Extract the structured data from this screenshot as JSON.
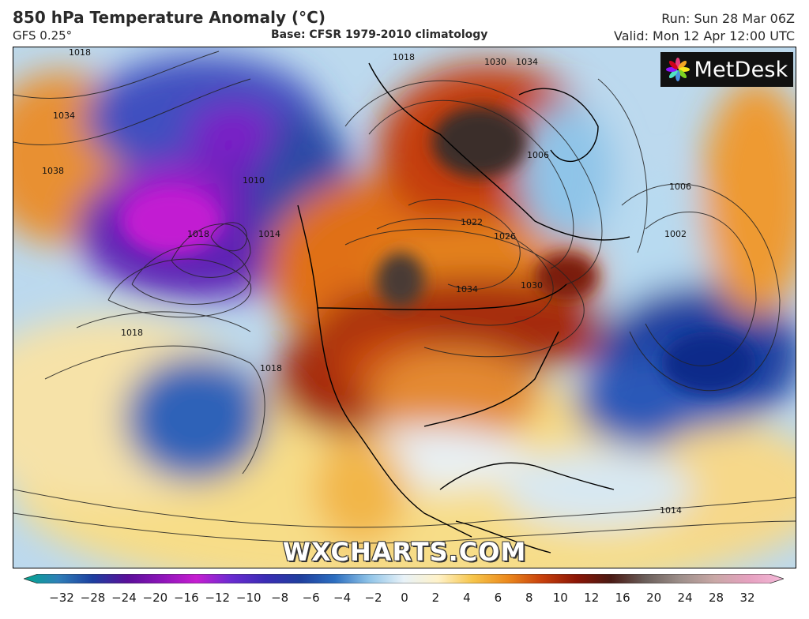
{
  "header": {
    "title": "850 hPa Temperature Anomaly (°C)",
    "model": "GFS 0.25°",
    "base": "Base: CFSR 1979-2010 climatology",
    "run": "Run: Sun 28 Mar 06Z",
    "valid": "Valid: Mon 12 Apr 12:00 UTC"
  },
  "logo": {
    "text": "MetDesk",
    "icon": "flower-icon"
  },
  "watermark": "WXCHARTS.COM",
  "map": {
    "isobar_labels": [
      "1018",
      "1034",
      "1038",
      "1010",
      "1014",
      "1018",
      "1018",
      "1018",
      "1014",
      "1022",
      "1026",
      "1034",
      "1030",
      "1006",
      "1006",
      "1002",
      "1030",
      "1034",
      "1018"
    ]
  },
  "colorbar": {
    "ticks": [
      "−32",
      "−28",
      "−24",
      "−20",
      "−16",
      "−12",
      "−10",
      "−8",
      "−6",
      "−4",
      "−2",
      "0",
      "2",
      "4",
      "6",
      "8",
      "10",
      "12",
      "16",
      "20",
      "24",
      "28",
      "32"
    ],
    "stops": [
      "#00a890",
      "#2f7fb8",
      "#1d3fa0",
      "#5a0f9a",
      "#8d14b9",
      "#c61ed1",
      "#6a2bd1",
      "#3a2cb5",
      "#1f3f9e",
      "#2c6ec0",
      "#8fc4e8",
      "#e8f2f8",
      "#fff2c8",
      "#f6c54a",
      "#ec8a1d",
      "#c8400c",
      "#8c1606",
      "#4a1a14",
      "#6b5f5b",
      "#9d8f8a",
      "#c9a8a6",
      "#e6a1c0",
      "#f4b8d8"
    ]
  }
}
